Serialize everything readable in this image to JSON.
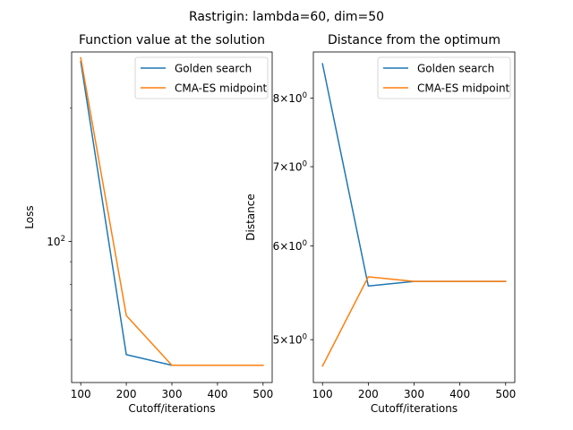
{
  "figure": {
    "suptitle": "Rastrigin: lambda=60, dim=50"
  },
  "chart_data": [
    {
      "type": "line",
      "title": "Function value at the solution",
      "xlabel": "Cutoff/iterations",
      "ylabel": "Loss",
      "yscale": "log",
      "x": [
        100,
        200,
        300,
        400,
        500
      ],
      "xlim": [
        80,
        520
      ],
      "xticks": [
        100,
        200,
        300,
        400,
        500
      ],
      "ylim": [
        48,
        268
      ],
      "ytick_labels": [
        {
          "value": 100,
          "label": "10^2"
        }
      ],
      "y_minor_ticks": [
        60,
        70,
        80,
        90,
        200
      ],
      "legend": "top-right",
      "series": [
        {
          "name": "Golden search",
          "color": "#1f77b4",
          "values": [
            255,
            55.5,
            52.5,
            52.5,
            52.5
          ]
        },
        {
          "name": "CMA-ES midpoint",
          "color": "#ff7f0e",
          "values": [
            260,
            68,
            52.5,
            52.5,
            52.5
          ]
        }
      ]
    },
    {
      "type": "line",
      "title": "Distance from the optimum",
      "xlabel": "Cutoff/iterations",
      "ylabel": "Distance",
      "yscale": "log",
      "x": [
        100,
        200,
        300,
        400,
        500
      ],
      "xlim": [
        80,
        520
      ],
      "xticks": [
        100,
        200,
        300,
        400,
        500
      ],
      "ylim": [
        4.6,
        8.75
      ],
      "ytick_labels": [
        {
          "value": 5,
          "label": "5×10^0"
        },
        {
          "value": 6,
          "label": "6×10^0"
        },
        {
          "value": 7,
          "label": "7×10^0"
        },
        {
          "value": 8,
          "label": "8×10^0"
        }
      ],
      "y_minor_ticks": [],
      "legend": "top-right",
      "series": [
        {
          "name": "Golden search",
          "color": "#1f77b4",
          "values": [
            8.55,
            5.55,
            5.6,
            5.6,
            5.6
          ]
        },
        {
          "name": "CMA-ES midpoint",
          "color": "#ff7f0e",
          "values": [
            4.75,
            5.65,
            5.6,
            5.6,
            5.6
          ]
        }
      ]
    }
  ]
}
